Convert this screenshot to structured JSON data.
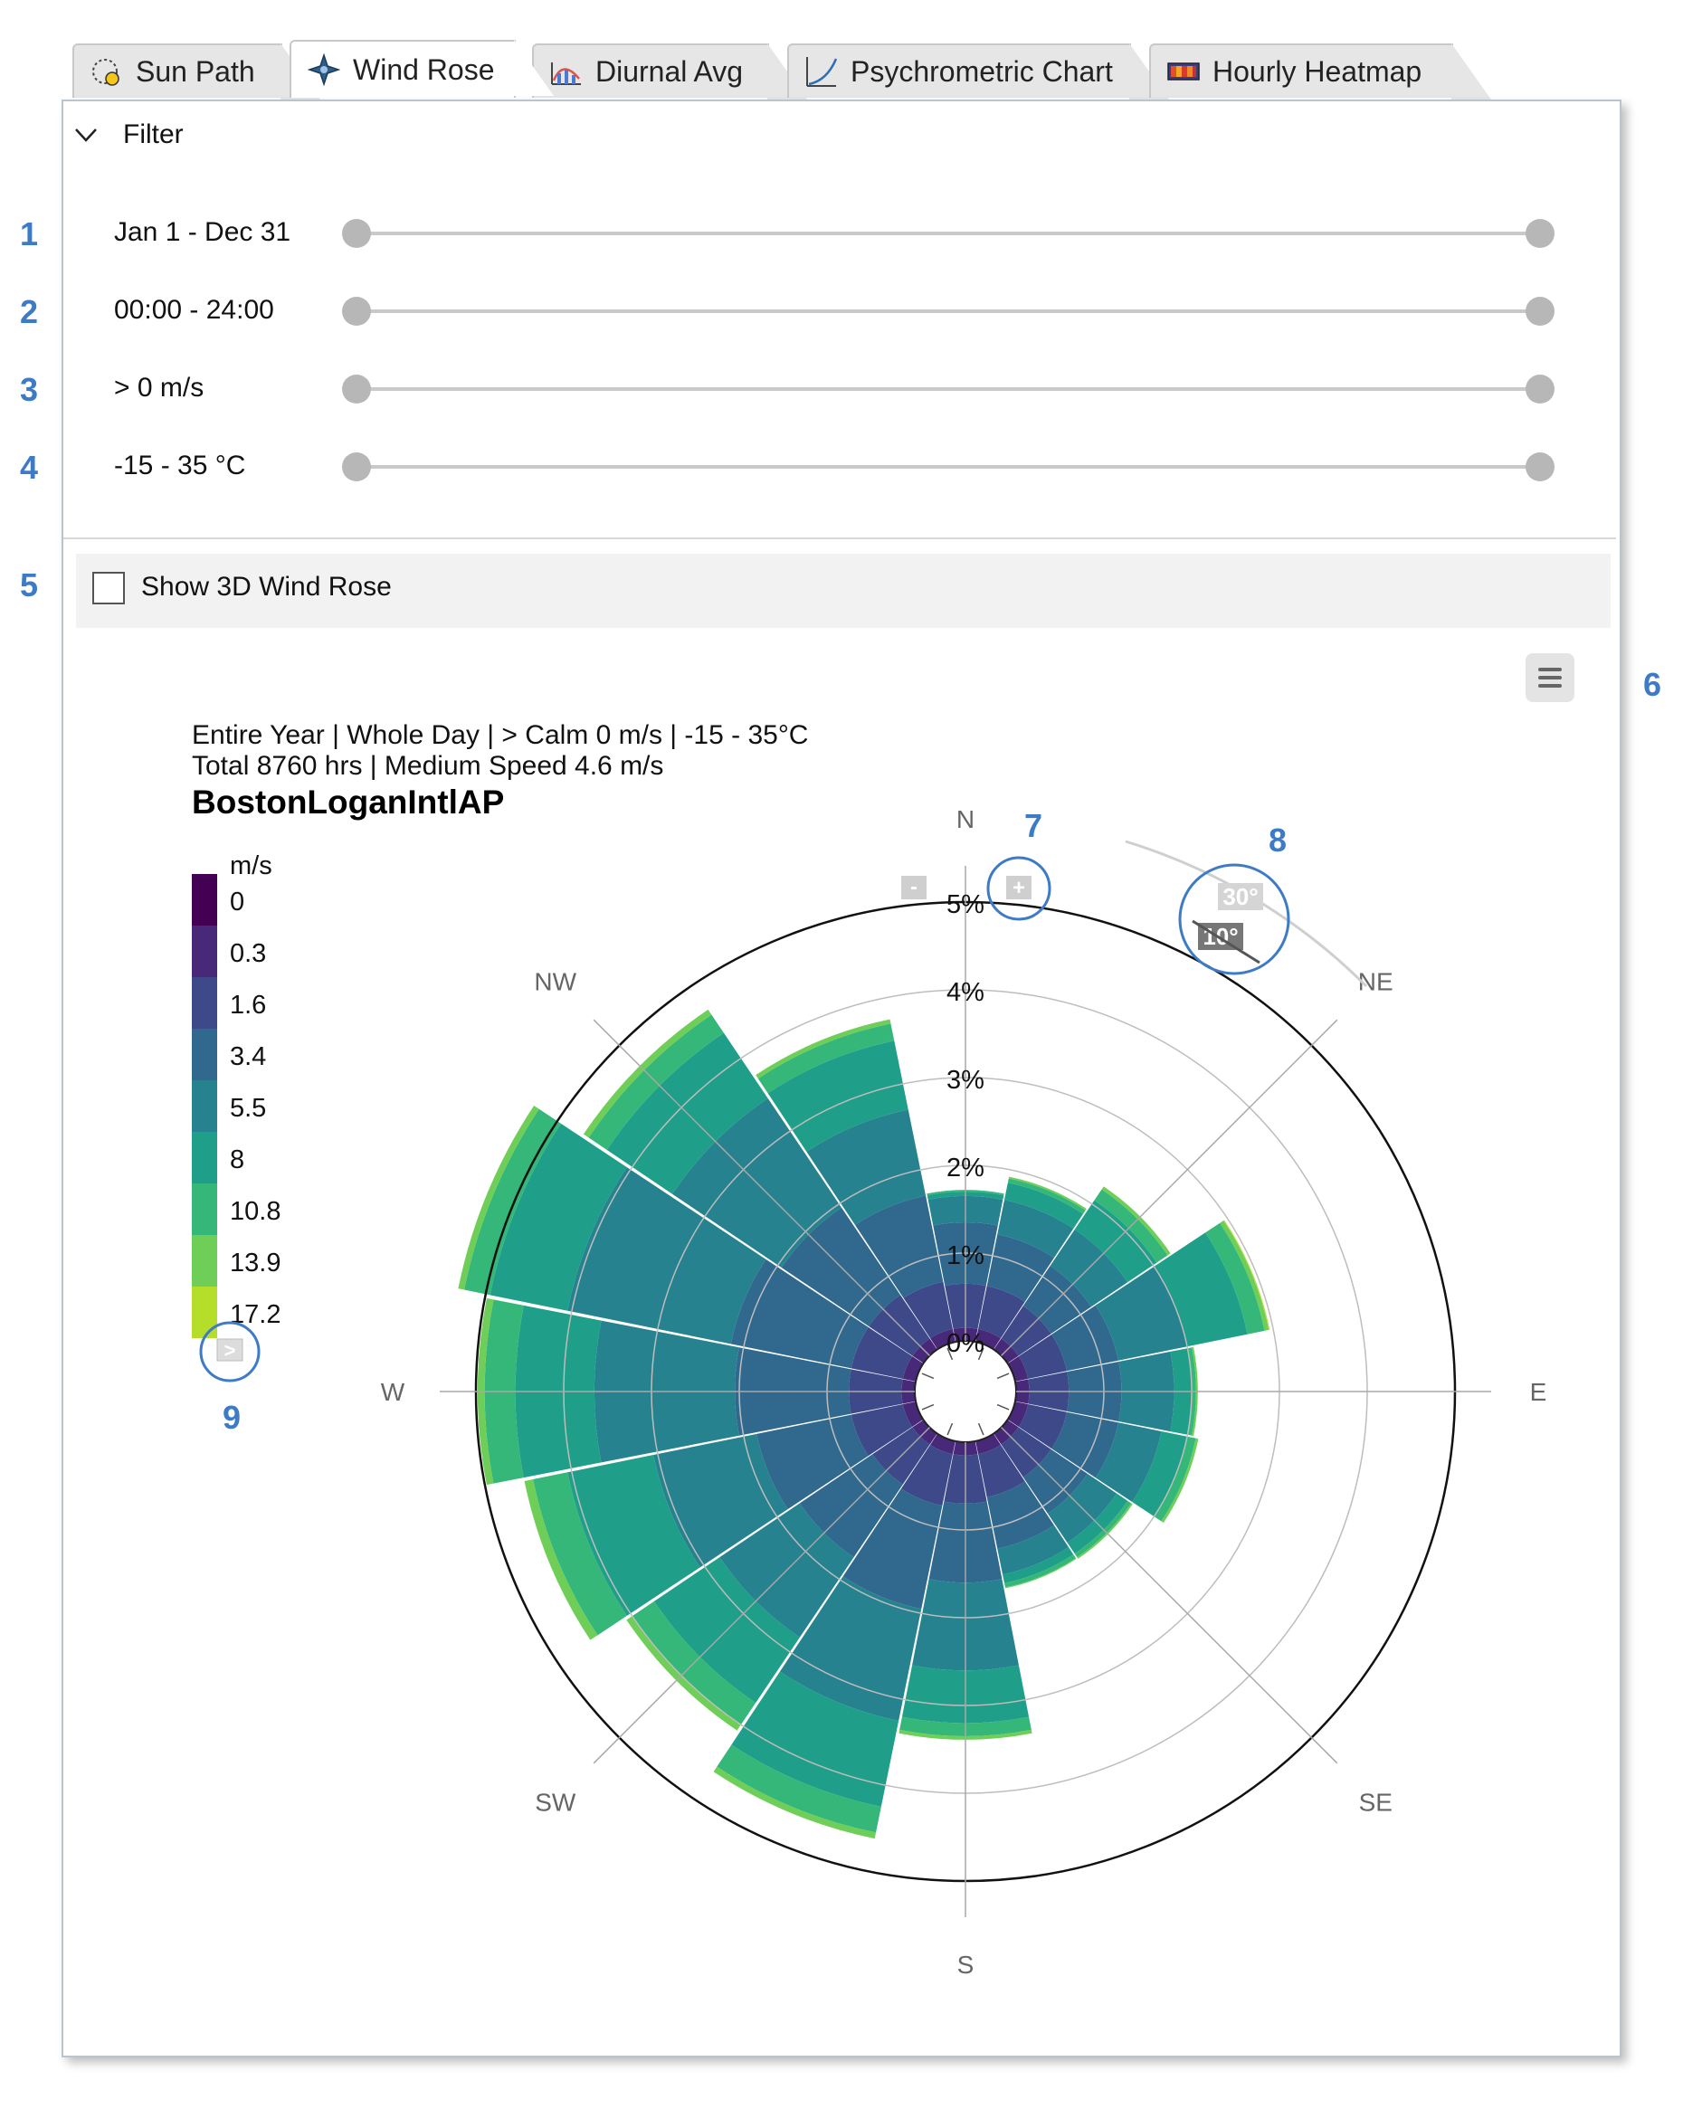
{
  "tabs": [
    {
      "label": "Sun Path",
      "icon": "sun-path-icon"
    },
    {
      "label": "Wind Rose",
      "icon": "wind-rose-icon"
    },
    {
      "label": "Diurnal Avg",
      "icon": "diurnal-icon"
    },
    {
      "label": "Psychrometric Chart",
      "icon": "psychrometric-icon"
    },
    {
      "label": "Hourly Heatmap",
      "icon": "heatmap-icon"
    }
  ],
  "active_tab": "Wind Rose",
  "filter": {
    "title": "Filter",
    "rows": [
      {
        "label": "Jan 1 - Dec 31",
        "marker": "1"
      },
      {
        "label": "00:00 - 24:00",
        "marker": "2"
      },
      {
        "label": "> 0 m/s",
        "marker": "3"
      },
      {
        "label": "-15 - 35 °C",
        "marker": "4"
      }
    ]
  },
  "show3d": {
    "label": "Show 3D Wind Rose",
    "checked": false,
    "marker": "5"
  },
  "markers": {
    "menu": "6",
    "zoom": "7",
    "angle": "8",
    "legend_toggle": "9"
  },
  "chart_header": {
    "line1": "Entire Year | Whole Day | > Calm 0 m/s | -15 - 35°C",
    "line2": "Total 8760 hrs | Medium Speed 4.6 m/s",
    "station": "BostonLoganIntlAP"
  },
  "zoom_controls": {
    "minus": "-",
    "plus": "+"
  },
  "angle_labels": {
    "outer": "30°",
    "inner": "10°"
  },
  "legend": {
    "unit": "m/s",
    "values": [
      "0",
      "0.3",
      "1.6",
      "3.4",
      "5.5",
      "8",
      "10.8",
      "13.9",
      "17.2"
    ],
    "colors": [
      "#440154",
      "#482878",
      "#3e4989",
      "#31688e",
      "#26828e",
      "#1f9e89",
      "#35b779",
      "#6ece58",
      "#b5de2b",
      "#fde725"
    ],
    "toggle_glyph": ">"
  },
  "chart_data": {
    "type": "wind-rose",
    "directions": [
      "N",
      "NNE",
      "NE",
      "ENE",
      "E",
      "ESE",
      "SE",
      "SSE",
      "S",
      "SSW",
      "SW",
      "WSW",
      "W",
      "WNW",
      "NW",
      "NNW"
    ],
    "compass_labels": [
      "N",
      "NE",
      "E",
      "SE",
      "S",
      "SW",
      "W",
      "NW"
    ],
    "radial_ticks": [
      "0%",
      "1%",
      "2%",
      "3%",
      "4%",
      "5%"
    ],
    "radial_max": 5,
    "speed_bins": [
      "0-0.3",
      "0.3-1.6",
      "1.6-3.4",
      "3.4-5.5",
      "5.5-8",
      "8-10.8",
      "10.8-13.9",
      "13.9-17.2"
    ],
    "series_percent": [
      [
        0.15,
        0.5,
        0.7,
        0.3,
        0.05,
        0.02,
        0,
        0
      ],
      [
        0.15,
        0.5,
        0.6,
        0.4,
        0.2,
        0.05,
        0.02,
        0
      ],
      [
        0.15,
        0.45,
        0.55,
        0.5,
        0.4,
        0.15,
        0.04,
        0
      ],
      [
        0.15,
        0.45,
        0.6,
        0.8,
        0.7,
        0.2,
        0.05,
        0.01
      ],
      [
        0.15,
        0.45,
        0.6,
        0.6,
        0.2,
        0.05,
        0.02,
        0
      ],
      [
        0.15,
        0.45,
        0.6,
        0.5,
        0.3,
        0.1,
        0.03,
        0
      ],
      [
        0.15,
        0.45,
        0.5,
        0.4,
        0.15,
        0.05,
        0.02,
        0
      ],
      [
        0.15,
        0.5,
        0.6,
        0.3,
        0.1,
        0.05,
        0.01,
        0
      ],
      [
        0.15,
        0.55,
        0.9,
        1.0,
        0.6,
        0.15,
        0.04,
        0
      ],
      [
        0.15,
        0.6,
        1.2,
        1.3,
        1.0,
        0.3,
        0.07,
        0
      ],
      [
        0.15,
        0.55,
        1.0,
        1.1,
        0.9,
        0.3,
        0.08,
        0
      ],
      [
        0.15,
        0.6,
        1.1,
        1.2,
        1.0,
        0.4,
        0.1,
        0
      ],
      [
        0.15,
        0.6,
        1.3,
        1.6,
        0.9,
        0.35,
        0.08,
        0
      ],
      [
        0.15,
        0.6,
        1.4,
        1.9,
        0.9,
        0.3,
        0.07,
        0
      ],
      [
        0.15,
        0.6,
        1.2,
        1.5,
        0.9,
        0.25,
        0.07,
        0
      ],
      [
        0.15,
        0.55,
        1.0,
        1.0,
        0.8,
        0.2,
        0.05,
        0
      ]
    ]
  }
}
